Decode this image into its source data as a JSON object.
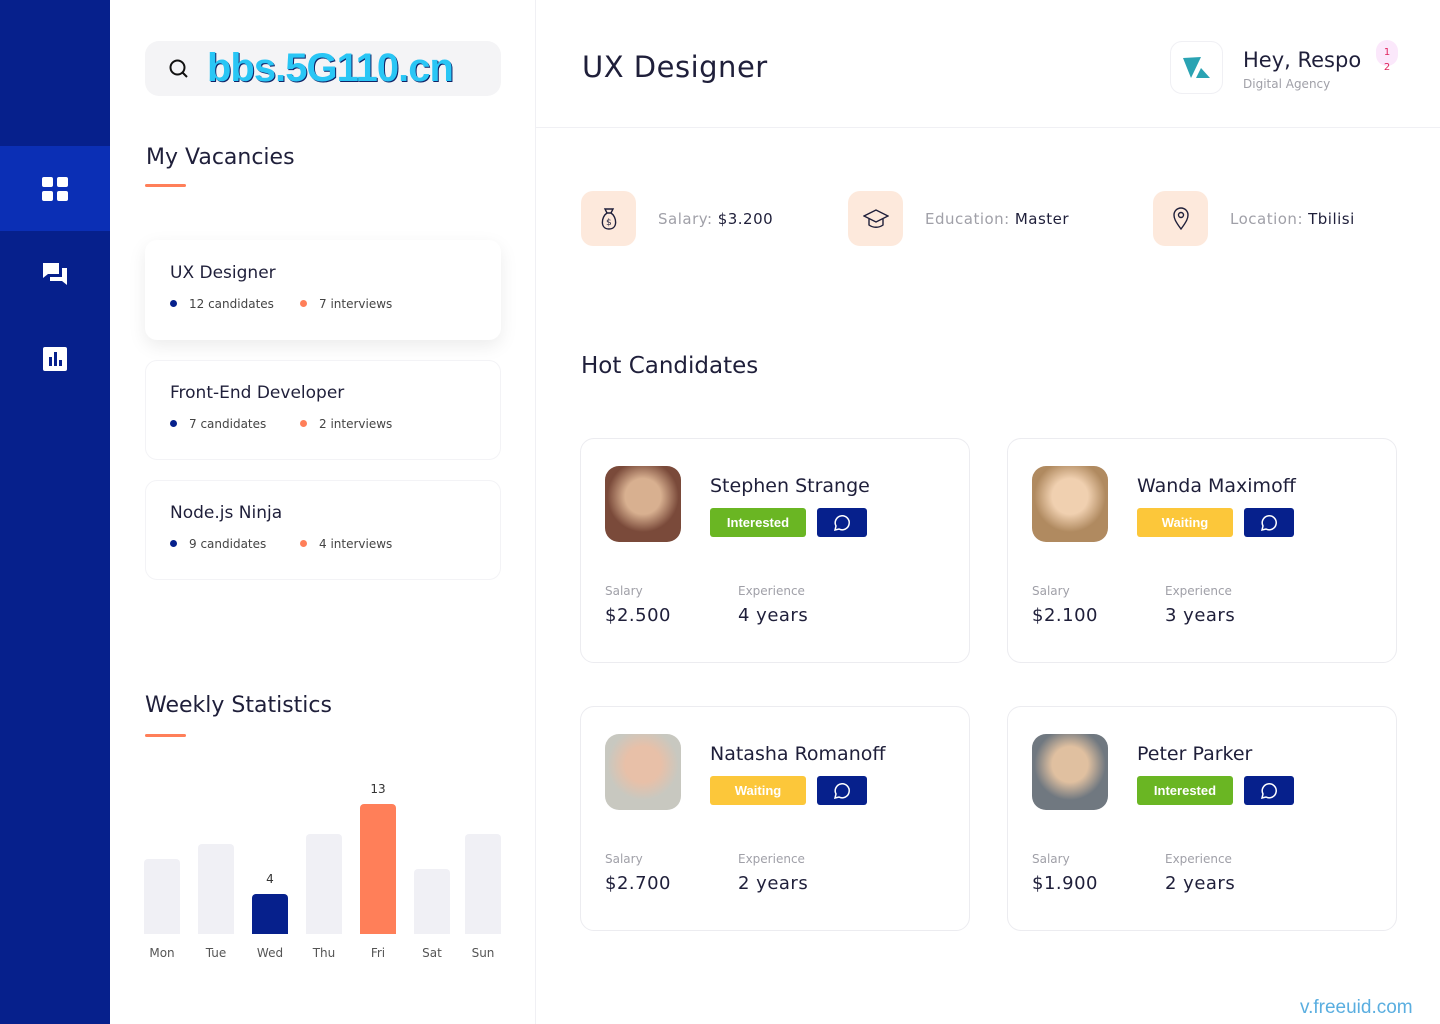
{
  "nav": {
    "items": [
      {
        "icon": "dashboard-icon",
        "active": true
      },
      {
        "icon": "chat-icon"
      },
      {
        "icon": "chart-icon"
      }
    ]
  },
  "search": {
    "watermark": "bbs.5G110.cn"
  },
  "vacancies": {
    "title": "My Vacancies",
    "items": [
      {
        "title": "UX Designer",
        "candidates": "12 candidates",
        "interviews": "7 interviews",
        "selected": true
      },
      {
        "title": "Front-End Developer",
        "candidates": "7 candidates",
        "interviews": "2 interviews"
      },
      {
        "title": "Node.js Ninja",
        "candidates": "9 candidates",
        "interviews": "4 interviews"
      }
    ]
  },
  "stats": {
    "title": "Weekly Statistics"
  },
  "chart_data": {
    "type": "bar",
    "categories": [
      "Mon",
      "Tue",
      "Wed",
      "Thu",
      "Fri",
      "Sat",
      "Sun"
    ],
    "values": [
      7.5,
      9,
      4,
      10,
      13,
      6.5,
      10
    ],
    "data_labels": {
      "Wed": "4",
      "Fri": "13"
    },
    "highlight": {
      "Wed": "#06208c",
      "Fri": "#ff7f59"
    },
    "default_color": "#f0f0f5"
  },
  "header": {
    "title": "UX Designer",
    "greeting": "Hey, Respo",
    "subtitle": "Digital Agency",
    "notif_1": "1",
    "notif_2": "2"
  },
  "info": [
    {
      "label": "Salary:",
      "value": "$3.200",
      "icon": "money-bag-icon"
    },
    {
      "label": "Education:",
      "value": "Master",
      "icon": "graduation-cap-icon"
    },
    {
      "label": "Location:",
      "value": "Tbilisi",
      "icon": "location-pin-icon"
    }
  ],
  "hot": {
    "title": "Hot Candidates",
    "salary_label": "Salary",
    "experience_label": "Experience",
    "candidates": [
      {
        "name": "Stephen Strange",
        "status": "Interested",
        "salary": "$2.500",
        "experience": "4 years"
      },
      {
        "name": "Wanda Maximoff",
        "status": "Waiting",
        "salary": "$2.100",
        "experience": "3 years"
      },
      {
        "name": "Natasha Romanoff",
        "status": "Waiting",
        "salary": "$2.700",
        "experience": "2 years"
      },
      {
        "name": "Peter Parker",
        "status": "Interested",
        "salary": "$1.900",
        "experience": "2 years"
      }
    ]
  },
  "colors": {
    "primary": "#06208c",
    "accent": "#ff7f59",
    "interested": "#6ab623",
    "waiting": "#fcc73a"
  },
  "footer": {
    "watermark": "v.freeuid.com"
  }
}
